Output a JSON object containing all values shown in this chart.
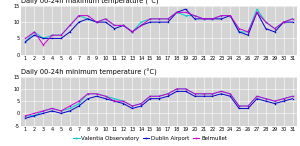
{
  "title_max": "Daily 00-24h maximum temperature (°C)",
  "title_min": "Daily 00-24h minimum temperature (°C)",
  "days": [
    1,
    2,
    3,
    4,
    5,
    6,
    7,
    8,
    9,
    10,
    11,
    12,
    13,
    14,
    15,
    16,
    17,
    18,
    19,
    20,
    21,
    22,
    23,
    24,
    25,
    26,
    27,
    28,
    29,
    30,
    31
  ],
  "max_valentia": [
    4,
    7,
    5,
    6,
    6,
    9,
    12,
    11,
    10,
    11,
    9,
    9,
    7,
    10,
    11,
    11,
    11,
    13,
    12,
    12,
    11,
    11,
    12,
    12,
    7,
    7,
    14,
    10,
    8,
    10,
    11
  ],
  "max_dublin": [
    4,
    6,
    5,
    5,
    5,
    7,
    10,
    11,
    10,
    10,
    8,
    9,
    7,
    9,
    10,
    10,
    10,
    13,
    14,
    11,
    11,
    11,
    11,
    12,
    7,
    6,
    13,
    8,
    7,
    10,
    10
  ],
  "max_belmullet": [
    5,
    7,
    3,
    6,
    6,
    9,
    12,
    12,
    10,
    11,
    9,
    9,
    7,
    9,
    11,
    11,
    11,
    13,
    13,
    12,
    11,
    11,
    12,
    12,
    8,
    7,
    13,
    10,
    8,
    10,
    11
  ],
  "min_valentia": [
    -1,
    -1,
    1,
    2,
    1,
    2,
    4,
    8,
    8,
    7,
    6,
    5,
    3,
    4,
    7,
    7,
    8,
    10,
    10,
    8,
    8,
    8,
    9,
    8,
    3,
    3,
    7,
    6,
    5,
    6,
    7
  ],
  "min_dublin": [
    -2,
    -1,
    0,
    1,
    0,
    1,
    3,
    6,
    7,
    6,
    5,
    4,
    2,
    3,
    6,
    6,
    7,
    9,
    9,
    7,
    7,
    7,
    8,
    7,
    2,
    2,
    6,
    5,
    4,
    5,
    6
  ],
  "min_belmullet": [
    -1,
    0,
    1,
    2,
    1,
    3,
    5,
    8,
    8,
    7,
    5,
    5,
    3,
    4,
    7,
    7,
    8,
    10,
    10,
    8,
    8,
    8,
    9,
    8,
    3,
    3,
    7,
    6,
    5,
    6,
    7
  ],
  "color_valentia": "#00cccc",
  "color_dublin": "#0000cc",
  "color_belmullet": "#cc00cc",
  "bg_color": "#d4d4d4",
  "ylim_max": [
    0,
    15
  ],
  "ylim_min": [
    -5,
    15
  ],
  "yticks_max": [
    0,
    5,
    10,
    15
  ],
  "yticks_min": [
    -5,
    0,
    5,
    10,
    15
  ],
  "legend_labels": [
    "Valentia Observatory",
    "Dublin Airport",
    "Belmullet"
  ],
  "title_fontsize": 4.8,
  "legend_fontsize": 4.0,
  "tick_fontsize": 3.5,
  "linewidth": 0.7,
  "markersize": 1.0
}
